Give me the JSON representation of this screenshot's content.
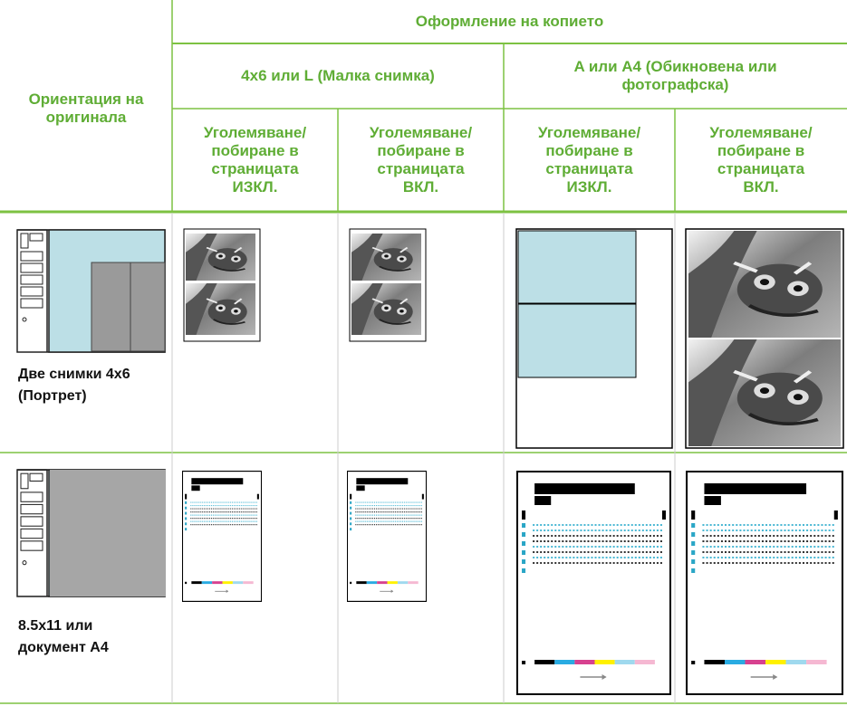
{
  "header": {
    "orientation": "Ориентация на оригинала",
    "layout": "Оформление на копието",
    "groups": [
      "4x6 или L (Малка снимка)",
      "A или A4 (Обикновена или фотографска)"
    ],
    "columns": [
      "Уголемяване/ побиране в страницата ИЗКЛ.",
      "Уголемяване/ побиране в страницата ВКЛ.",
      "Уголемяване/ побиране в страницата ИЗКЛ.",
      "Уголемяване/ побиране в страницата ВКЛ."
    ]
  },
  "rows": [
    {
      "label": "Две снимки 4x6 (Портрет)"
    },
    {
      "label": "8.5x11 или документ A4"
    }
  ]
}
